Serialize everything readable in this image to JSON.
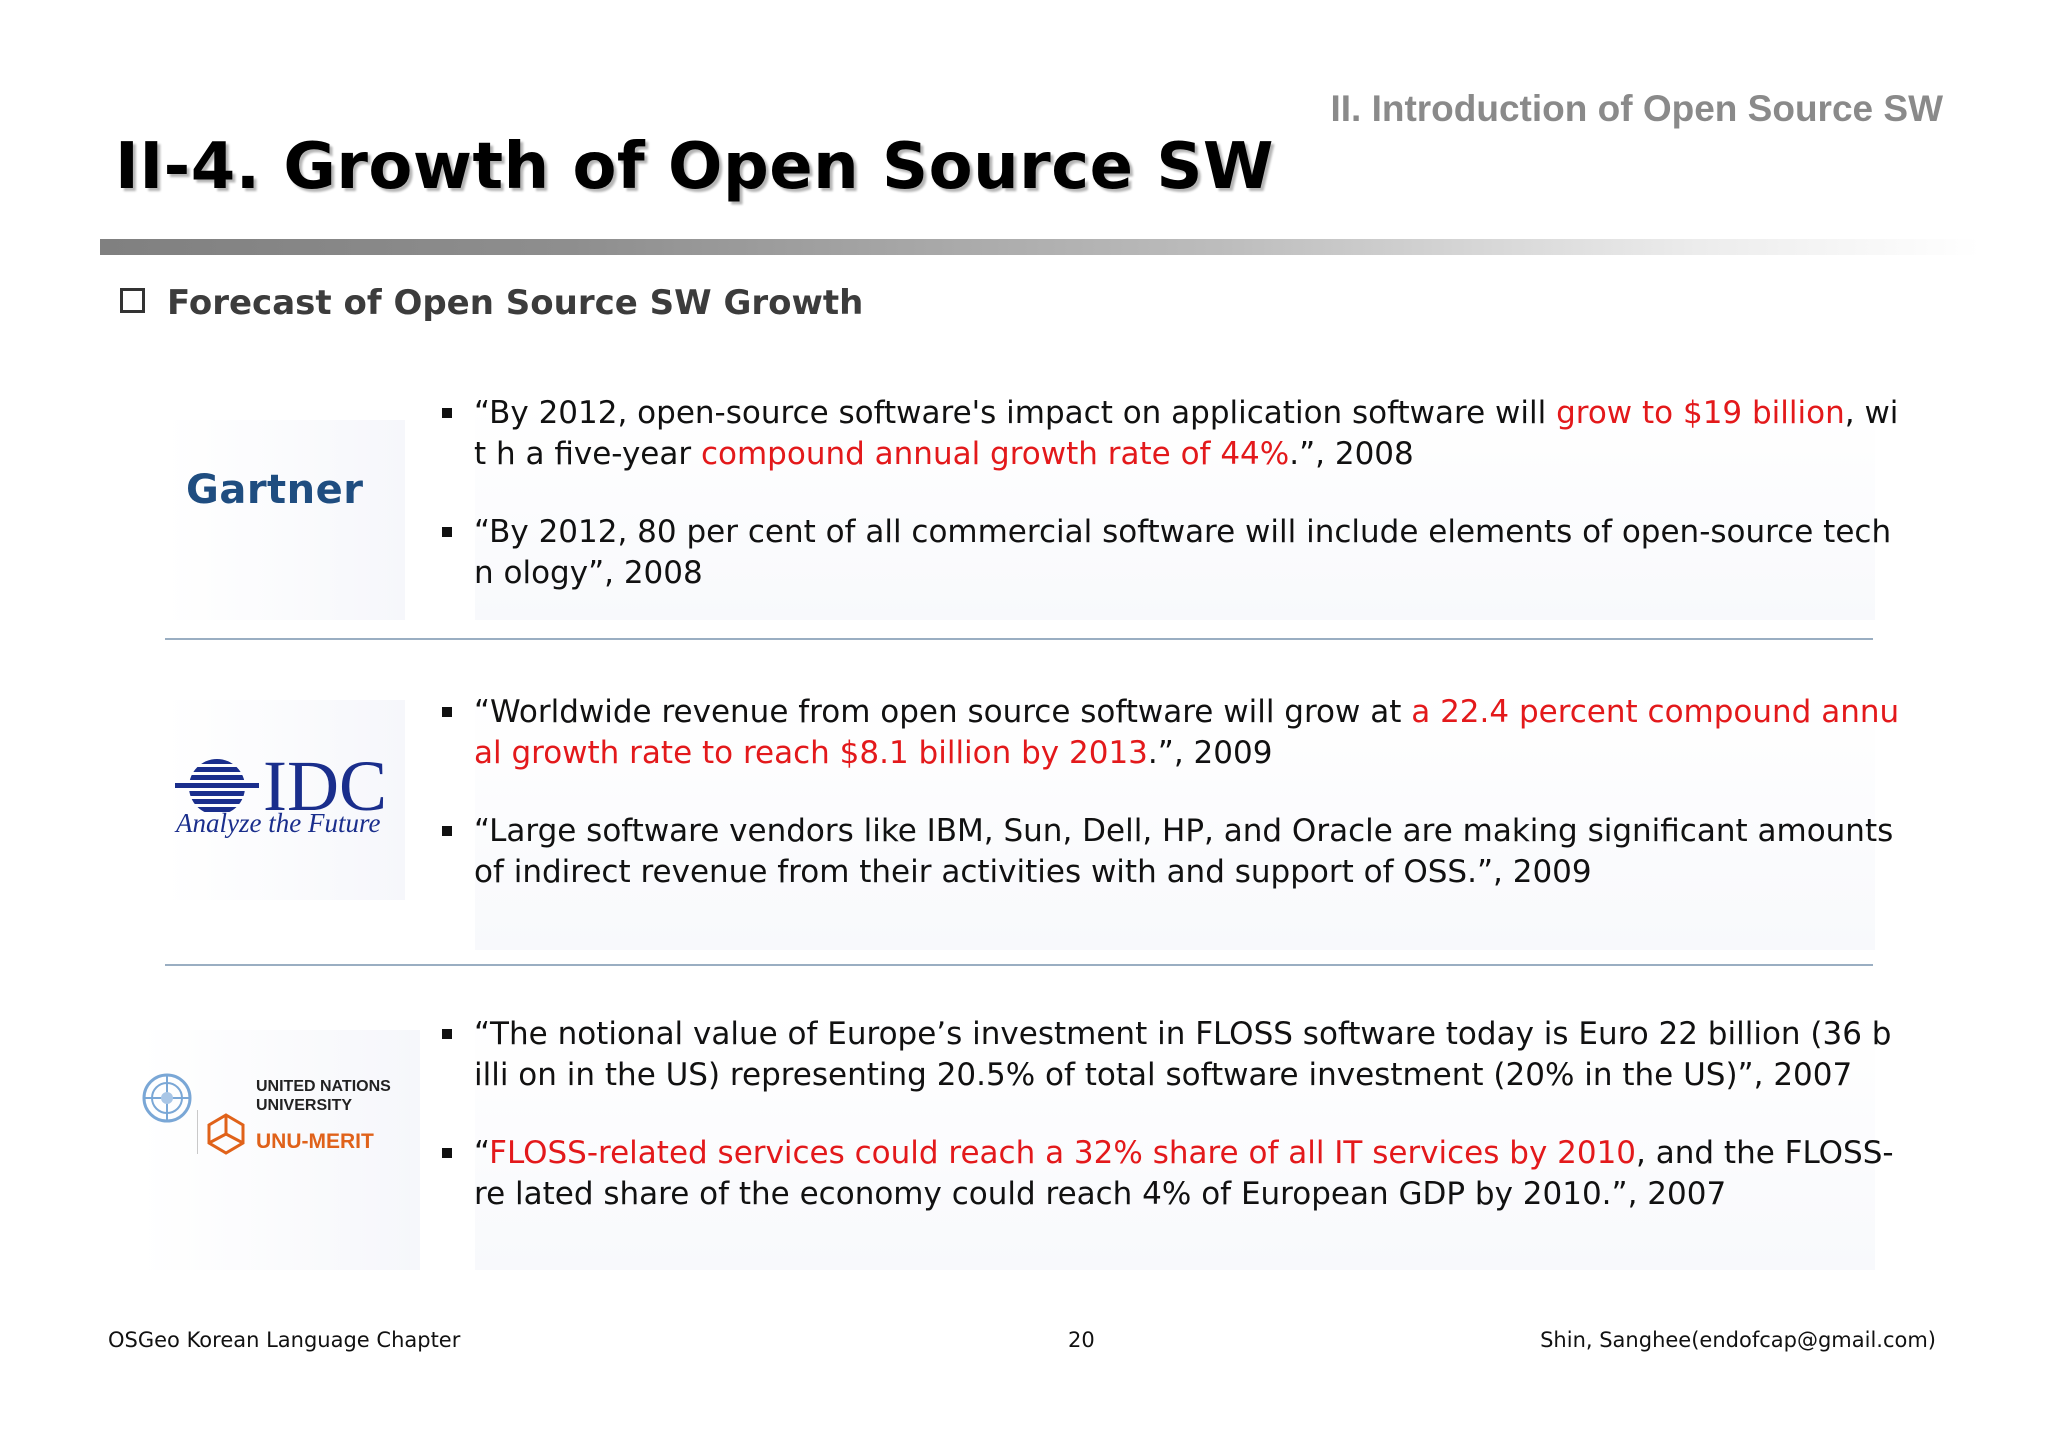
{
  "header": {
    "section_label": "II. Introduction of Open Source SW",
    "title": "II-4. Growth of Open Source SW"
  },
  "subheading": "Forecast of Open Source SW Growth",
  "sources": [
    {
      "logo_text": "Gartner",
      "logo_color": "#1f4d80",
      "quotes": [
        {
          "parts": [
            {
              "text": "“By 2012, open-source software's impact on application software will ",
              "highlight": false
            },
            {
              "text": "grow to $19 billion",
              "highlight": true
            },
            {
              "text": ", wit h a five-year ",
              "highlight": false
            },
            {
              "text": "compound annual growth rate of 44%",
              "highlight": true
            },
            {
              "text": ".”, 2008",
              "highlight": false
            }
          ]
        },
        {
          "parts": [
            {
              "text": "“By 2012, 80 per cent of all commercial software will include elements of open-source techn ology”, 2008",
              "highlight": false
            }
          ]
        }
      ]
    },
    {
      "logo_text": "IDC",
      "logo_tagline": "Analyze the Future",
      "logo_color": "#1a2e8c",
      "quotes": [
        {
          "parts": [
            {
              "text": " “Worldwide revenue from open source software will grow at ",
              "highlight": false
            },
            {
              "text": "a 22.4 percent compound annu al growth rate to reach $8.1 billion by 2013",
              "highlight": true
            },
            {
              "text": ".”, 2009",
              "highlight": false
            }
          ]
        },
        {
          "parts": [
            {
              "text": " “Large software vendors like IBM, Sun, Dell, HP, and Oracle are making significant amounts of indirect revenue from their activities with and support of OSS.”, 2009",
              "highlight": false
            }
          ]
        }
      ]
    },
    {
      "logo_line1": "UNITED NATIONS",
      "logo_line2": "UNIVERSITY",
      "logo_merit": "UNU-MERIT",
      "logo_color": "#e0621a",
      "quotes": [
        {
          "parts": [
            {
              "text": "“The notional value of Europe’s investment in FLOSS software today is Euro 22 billion (36 billi on in the US) representing 20.5% of total software investment (20% in the US)”, 2007",
              "highlight": false
            }
          ]
        },
        {
          "parts": [
            {
              "text": " “",
              "highlight": false
            },
            {
              "text": "FLOSS-related services could reach a 32% share of all IT services by 2010",
              "highlight": true
            },
            {
              "text": ", and the FLOSS-re lated share of the economy could reach 4% of European GDP by 2010.”, 2007",
              "highlight": false
            }
          ]
        }
      ]
    }
  ],
  "footer": {
    "left": "OSGeo Korean Language Chapter",
    "page_number": "20",
    "right": "Shin, Sanghee(endofcap@gmail.com)"
  },
  "colors": {
    "highlight": "#e3191b",
    "separator": "#9aaec2"
  }
}
